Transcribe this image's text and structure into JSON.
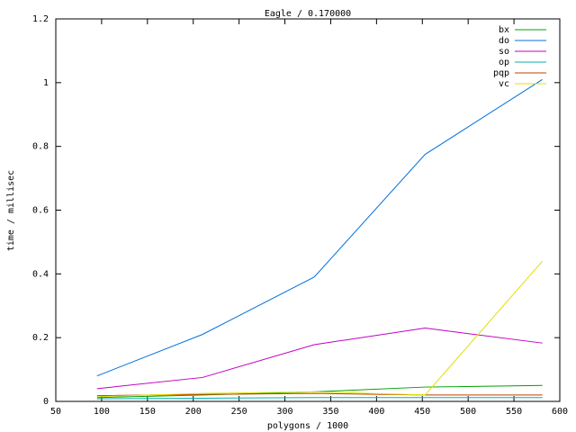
{
  "chart_data": {
    "type": "line",
    "title": "Eagle / 0.170000",
    "x_label": "polygons / 1000",
    "y_label": "time / millisec",
    "x": [
      95,
      210,
      332,
      453,
      581
    ],
    "series": [
      {
        "name": "bx",
        "color": "#00a000",
        "values": [
          0.012,
          0.02,
          0.03,
          0.045,
          0.05
        ]
      },
      {
        "name": "do",
        "color": "#0070e0",
        "values": [
          0.08,
          0.21,
          0.39,
          0.775,
          1.01
        ]
      },
      {
        "name": "so",
        "color": "#c000c0",
        "values": [
          0.04,
          0.075,
          0.178,
          0.23,
          0.183
        ]
      },
      {
        "name": "op",
        "color": "#00b0b0",
        "values": [
          0.008,
          0.01,
          0.012,
          0.012,
          0.012
        ]
      },
      {
        "name": "pqp",
        "color": "#c04000",
        "values": [
          0.018,
          0.022,
          0.025,
          0.02,
          0.02
        ]
      },
      {
        "name": "vc",
        "color": "#e0e000",
        "values": [
          0.015,
          0.025,
          0.03,
          0.02,
          0.44
        ]
      }
    ],
    "xlim": [
      50,
      600
    ],
    "xticks": [
      50,
      100,
      150,
      200,
      250,
      300,
      350,
      400,
      450,
      500,
      550,
      600
    ],
    "ylim": [
      0,
      1.2
    ],
    "yticks": [
      0,
      0.2,
      0.4,
      0.6,
      0.8,
      1,
      1.2
    ],
    "grid": false,
    "legend": "top-right"
  }
}
